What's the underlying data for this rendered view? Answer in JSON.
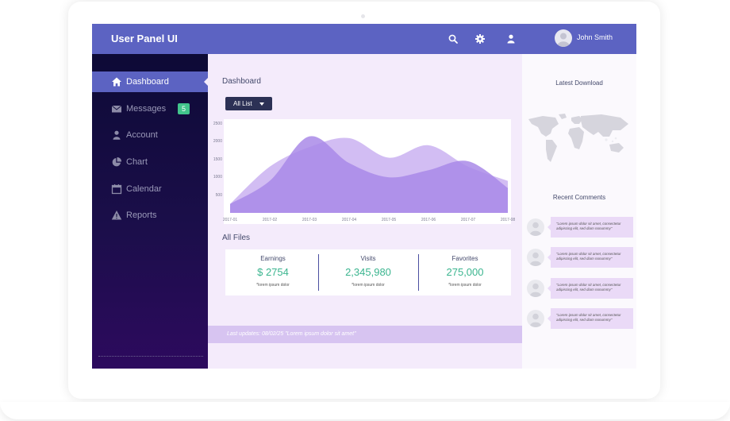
{
  "app": {
    "title": "User Panel UI"
  },
  "header": {
    "icons": [
      "search-icon",
      "gear-icon",
      "user-icon"
    ],
    "user_name": "John Smith",
    "colors": {
      "topbar": "#5c63c2"
    }
  },
  "sidebar": {
    "items": [
      {
        "label": "Dashboard",
        "icon": "home-icon",
        "active": true
      },
      {
        "label": "Messages",
        "icon": "envelope-icon",
        "badge": "5"
      },
      {
        "label": "Account",
        "icon": "user-icon"
      },
      {
        "label": "Chart",
        "icon": "pie-chart-icon"
      },
      {
        "label": "Calendar",
        "icon": "calendar-icon"
      },
      {
        "label": "Reports",
        "icon": "warning-icon"
      }
    ],
    "colors": {
      "active": "#5c63c2",
      "badge": "#42c48c"
    }
  },
  "main": {
    "title": "Dashboard",
    "filter": {
      "selected": "All List"
    },
    "files_title": "All Files",
    "stats": [
      {
        "label": "Earnings",
        "value": "$ 2754",
        "sub": "*lorem ipsum dolor"
      },
      {
        "label": "Visits",
        "value": "2,345,980",
        "sub": "*lorem ipsum dolor"
      },
      {
        "label": "Favorites",
        "value": "275,000",
        "sub": "*lorem ipsum dolor"
      }
    ],
    "update_text": "Last updates: 08/02/25 \"Lorem ipsum dolor sit amet\""
  },
  "chart_data": {
    "type": "area",
    "x": [
      "2017-01",
      "2017-02",
      "2017-03",
      "2017-04",
      "2017-05",
      "2017-06",
      "2017-07",
      "2017-08"
    ],
    "ylim": [
      0,
      2500
    ],
    "yticks": [
      500,
      1000,
      1500,
      2000,
      2500
    ],
    "ytick_labels": [
      "500",
      "1000",
      "1500",
      "2000",
      "2500"
    ],
    "series": [
      {
        "values": [
          250,
          1300,
          1850,
          2100,
          1550,
          1900,
          1300,
          900
        ],
        "color": "#cdb6f2"
      },
      {
        "values": [
          250,
          900,
          2150,
          1400,
          1000,
          1200,
          1450,
          700
        ],
        "color": "#a98ae8"
      }
    ]
  },
  "right_panel": {
    "download_title": "Latest Download",
    "comments_title": "Recent Comments",
    "comments": [
      {
        "text": "\"Lorem ipsum dolor sit amet, consectetur adipiscing elit, sed diam nonummy\""
      },
      {
        "text": "\"Lorem ipsum dolor sit amet, consectetur adipiscing elit, sed diam nonummy\""
      },
      {
        "text": "\"Lorem ipsum dolor sit amet, consectetur adipiscing elit, sed diam nonummy\""
      },
      {
        "text": "\"Lorem ipsum dolor sit amet, consectetur adipiscing elit, sed diam nonummy\""
      }
    ]
  }
}
